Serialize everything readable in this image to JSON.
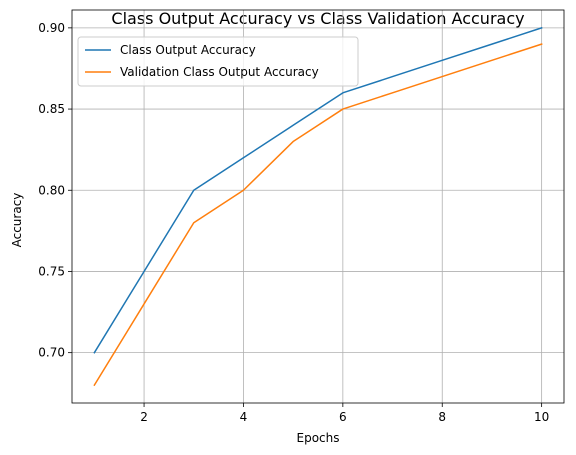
{
  "chart_data": {
    "type": "line",
    "title": "Class Output Accuracy vs Class Validation Accuracy",
    "xlabel": "Epochs",
    "ylabel": "Accuracy",
    "x": [
      1,
      2,
      3,
      4,
      5,
      6,
      7,
      8,
      9,
      10
    ],
    "xlim": [
      0.55,
      10.45
    ],
    "ylim": [
      0.669,
      0.911
    ],
    "xticks": [
      2,
      4,
      6,
      8,
      10
    ],
    "yticks": [
      0.7,
      0.75,
      0.8,
      0.85,
      0.9
    ],
    "xtick_labels": [
      "2",
      "4",
      "6",
      "8",
      "10"
    ],
    "ytick_labels": [
      "0.70",
      "0.75",
      "0.80",
      "0.85",
      "0.90"
    ],
    "grid": true,
    "legend_position": "upper-left",
    "series": [
      {
        "name": "Class Output Accuracy",
        "color": "#1f77b4",
        "values": [
          0.7,
          0.75,
          0.8,
          0.82,
          0.84,
          0.86,
          0.87,
          0.88,
          0.89,
          0.9
        ]
      },
      {
        "name": "Validation Class Output Accuracy",
        "color": "#ff7f0e",
        "values": [
          0.68,
          0.73,
          0.78,
          0.8,
          0.83,
          0.85,
          0.86,
          0.87,
          0.88,
          0.89
        ]
      }
    ]
  }
}
